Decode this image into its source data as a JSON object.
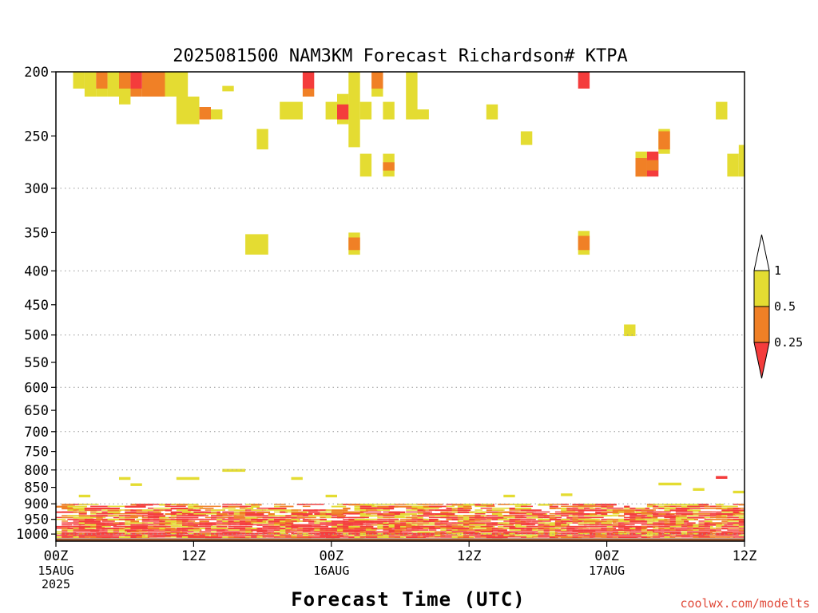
{
  "chart_data": {
    "type": "heatmap",
    "title": "2025081500 NAM3KM Forecast Richardson# KTPA",
    "xlabel": "Forecast Time (UTC)",
    "ylabel": "",
    "x_unit": "forecast hour",
    "xlim": [
      0,
      60
    ],
    "y_axis_scale": "log-pressure (reversed)",
    "ylim": [
      1025,
      200
    ],
    "grid": true,
    "y_ticks": [
      200,
      250,
      300,
      350,
      400,
      450,
      500,
      550,
      600,
      650,
      700,
      750,
      800,
      850,
      900,
      950,
      1000
    ],
    "y_grid_lines": [
      300,
      400,
      500,
      600,
      700,
      800,
      900,
      1000
    ],
    "x_ticks": [
      {
        "hour": 0,
        "label": "00Z",
        "sub": [
          "15AUG",
          "2025"
        ]
      },
      {
        "hour": 12,
        "label": "12Z",
        "sub": []
      },
      {
        "hour": 24,
        "label": "00Z",
        "sub": [
          "16AUG"
        ]
      },
      {
        "hour": 36,
        "label": "12Z",
        "sub": []
      },
      {
        "hour": 48,
        "label": "00Z",
        "sub": [
          "17AUG"
        ]
      },
      {
        "hour": 60,
        "label": "12Z",
        "sub": []
      }
    ],
    "legend": {
      "placement": "right",
      "labels": [
        "1",
        "0.5",
        "0.25"
      ],
      "bins": [
        {
          "range": "<0.25",
          "color": "#f43c3c"
        },
        {
          "range": "0.25-0.5",
          "color": "#f08026"
        },
        {
          "range": "0.5-1",
          "color": "#e4dc32"
        },
        {
          "range": ">1",
          "color": "#ffffff"
        }
      ]
    },
    "ground_color": "#9b552e",
    "ground_pressure": 1015,
    "cells": [
      {
        "x0": 1.5,
        "x1": 2.5,
        "p0": 200,
        "p1": 212,
        "c": "y"
      },
      {
        "x0": 2.5,
        "x1": 3.5,
        "p0": 200,
        "p1": 218,
        "c": "y"
      },
      {
        "x0": 3.5,
        "x1": 4.5,
        "p0": 200,
        "p1": 212,
        "c": "o"
      },
      {
        "x0": 3.5,
        "x1": 4.5,
        "p0": 212,
        "p1": 218,
        "c": "y"
      },
      {
        "x0": 4.5,
        "x1": 5.5,
        "p0": 200,
        "p1": 218,
        "c": "y"
      },
      {
        "x0": 5.5,
        "x1": 6.5,
        "p0": 200,
        "p1": 212,
        "c": "o"
      },
      {
        "x0": 5.5,
        "x1": 6.5,
        "p0": 212,
        "p1": 224,
        "c": "y"
      },
      {
        "x0": 6.5,
        "x1": 7.5,
        "p0": 200,
        "p1": 212,
        "c": "r"
      },
      {
        "x0": 6.5,
        "x1": 7.5,
        "p0": 212,
        "p1": 218,
        "c": "o"
      },
      {
        "x0": 7.5,
        "x1": 9.5,
        "p0": 200,
        "p1": 218,
        "c": "o"
      },
      {
        "x0": 9.5,
        "x1": 11.5,
        "p0": 200,
        "p1": 218,
        "c": "y"
      },
      {
        "x0": 10.5,
        "x1": 12.5,
        "p0": 218,
        "p1": 240,
        "c": "y"
      },
      {
        "x0": 12.5,
        "x1": 13.5,
        "p0": 226,
        "p1": 236,
        "c": "o"
      },
      {
        "x0": 13.5,
        "x1": 14.5,
        "p0": 228,
        "p1": 236,
        "c": "y"
      },
      {
        "x0": 14.5,
        "x1": 15.5,
        "p0": 210,
        "p1": 214,
        "c": "y"
      },
      {
        "x0": 17.5,
        "x1": 18.5,
        "p0": 244,
        "p1": 262,
        "c": "y"
      },
      {
        "x0": 19.5,
        "x1": 21.5,
        "p0": 222,
        "p1": 236,
        "c": "y"
      },
      {
        "x0": 21.5,
        "x1": 22.5,
        "p0": 200,
        "p1": 212,
        "c": "r"
      },
      {
        "x0": 21.5,
        "x1": 22.5,
        "p0": 212,
        "p1": 218,
        "c": "o"
      },
      {
        "x0": 23.5,
        "x1": 24.5,
        "p0": 222,
        "p1": 236,
        "c": "y"
      },
      {
        "x0": 24.5,
        "x1": 25.5,
        "p0": 216,
        "p1": 240,
        "c": "y"
      },
      {
        "x0": 24.5,
        "x1": 25.5,
        "p0": 224,
        "p1": 236,
        "c": "r"
      },
      {
        "x0": 25.5,
        "x1": 26.5,
        "p0": 200,
        "p1": 260,
        "c": "y"
      },
      {
        "x0": 26.5,
        "x1": 27.5,
        "p0": 222,
        "p1": 236,
        "c": "y"
      },
      {
        "x0": 26.5,
        "x1": 27.5,
        "p0": 266,
        "p1": 288,
        "c": "y"
      },
      {
        "x0": 27.5,
        "x1": 28.5,
        "p0": 200,
        "p1": 212,
        "c": "o"
      },
      {
        "x0": 27.5,
        "x1": 28.5,
        "p0": 212,
        "p1": 218,
        "c": "y"
      },
      {
        "x0": 28.5,
        "x1": 29.5,
        "p0": 222,
        "p1": 236,
        "c": "y"
      },
      {
        "x0": 28.5,
        "x1": 29.5,
        "p0": 266,
        "p1": 288,
        "c": "y"
      },
      {
        "x0": 28.5,
        "x1": 29.5,
        "p0": 274,
        "p1": 282,
        "c": "o"
      },
      {
        "x0": 30.5,
        "x1": 31.5,
        "p0": 200,
        "p1": 236,
        "c": "y"
      },
      {
        "x0": 31.5,
        "x1": 32.5,
        "p0": 228,
        "p1": 236,
        "c": "y"
      },
      {
        "x0": 37.5,
        "x1": 38.5,
        "p0": 224,
        "p1": 236,
        "c": "y"
      },
      {
        "x0": 40.5,
        "x1": 41.5,
        "p0": 246,
        "p1": 258,
        "c": "y"
      },
      {
        "x0": 45.5,
        "x1": 46.5,
        "p0": 200,
        "p1": 212,
        "c": "r"
      },
      {
        "x0": 50.5,
        "x1": 51.5,
        "p0": 264,
        "p1": 288,
        "c": "y"
      },
      {
        "x0": 50.5,
        "x1": 51.5,
        "p0": 270,
        "p1": 288,
        "c": "o"
      },
      {
        "x0": 51.5,
        "x1": 52.5,
        "p0": 264,
        "p1": 288,
        "c": "r"
      },
      {
        "x0": 51.5,
        "x1": 52.5,
        "p0": 272,
        "p1": 282,
        "c": "o"
      },
      {
        "x0": 52.5,
        "x1": 53.5,
        "p0": 244,
        "p1": 266,
        "c": "y"
      },
      {
        "x0": 52.5,
        "x1": 53.5,
        "p0": 246,
        "p1": 262,
        "c": "o"
      },
      {
        "x0": 57.5,
        "x1": 58.5,
        "p0": 222,
        "p1": 236,
        "c": "y"
      },
      {
        "x0": 58.5,
        "x1": 59.5,
        "p0": 266,
        "p1": 288,
        "c": "y"
      },
      {
        "x0": 59.5,
        "x1": 60.0,
        "p0": 258,
        "p1": 288,
        "c": "y"
      },
      {
        "x0": 16.5,
        "x1": 18.5,
        "p0": 352,
        "p1": 378,
        "c": "y"
      },
      {
        "x0": 25.5,
        "x1": 26.5,
        "p0": 350,
        "p1": 378,
        "c": "y"
      },
      {
        "x0": 25.5,
        "x1": 26.5,
        "p0": 356,
        "p1": 372,
        "c": "o"
      },
      {
        "x0": 45.5,
        "x1": 46.5,
        "p0": 348,
        "p1": 378,
        "c": "y"
      },
      {
        "x0": 45.5,
        "x1": 46.5,
        "p0": 354,
        "p1": 372,
        "c": "o"
      },
      {
        "x0": 49.5,
        "x1": 50.5,
        "p0": 482,
        "p1": 502,
        "c": "y"
      },
      {
        "x0": 14.5,
        "x1": 16.5,
        "p0": 797,
        "p1": 805,
        "c": "y"
      },
      {
        "x0": 10.5,
        "x1": 12.5,
        "p0": 820,
        "p1": 828,
        "c": "y"
      },
      {
        "x0": 5.5,
        "x1": 6.5,
        "p0": 820,
        "p1": 828,
        "c": "y"
      },
      {
        "x0": 6.5,
        "x1": 7.5,
        "p0": 838,
        "p1": 846,
        "c": "y"
      },
      {
        "x0": 20.5,
        "x1": 21.5,
        "p0": 820,
        "p1": 828,
        "c": "y"
      },
      {
        "x0": 57.5,
        "x1": 58.5,
        "p0": 817,
        "p1": 825,
        "c": "r"
      },
      {
        "x0": 52.5,
        "x1": 54.5,
        "p0": 836,
        "p1": 844,
        "c": "y"
      },
      {
        "x0": 55.5,
        "x1": 56.5,
        "p0": 852,
        "p1": 860,
        "c": "y"
      },
      {
        "x0": 2.0,
        "x1": 3.0,
        "p0": 872,
        "p1": 880,
        "c": "y"
      },
      {
        "x0": 23.5,
        "x1": 24.5,
        "p0": 872,
        "p1": 880,
        "c": "y"
      },
      {
        "x0": 39.0,
        "x1": 40.0,
        "p0": 872,
        "p1": 880,
        "c": "y"
      },
      {
        "x0": 44.0,
        "x1": 45.0,
        "p0": 868,
        "p1": 876,
        "c": "y"
      },
      {
        "x0": 59.0,
        "x1": 60.0,
        "p0": 860,
        "p1": 868,
        "c": "y"
      }
    ]
  },
  "watermark": "coolwx.com/modelts"
}
